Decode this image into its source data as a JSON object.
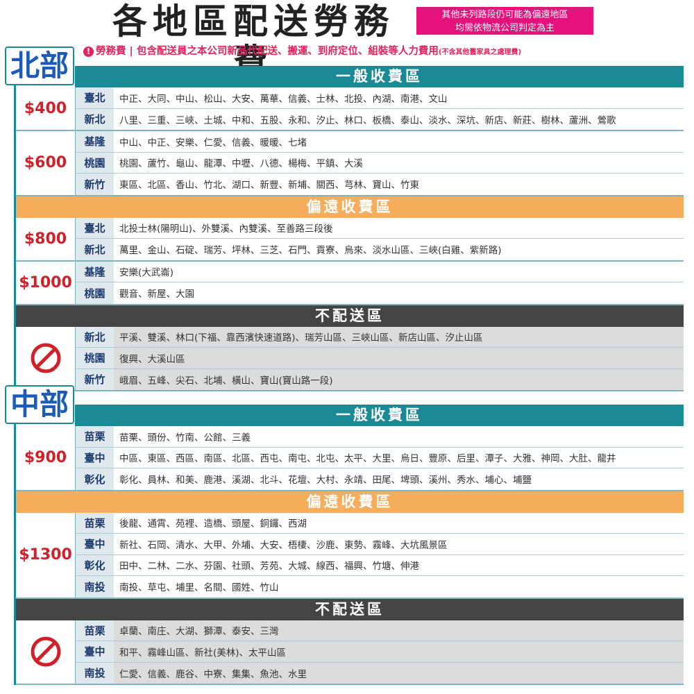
{
  "header": {
    "title": "各地區配送勞務費",
    "notice": [
      "其他未列路段仍可能為偏遠地區",
      "均需依物流公司判定為主"
    ],
    "label": "勞務費",
    "text": "包含配送員之本公司新品代配送、搬運、到府定位、組裝等人力費用",
    "note": "(不含其他舊家具之處理費)"
  },
  "regions": [
    {
      "name": "北部",
      "zones": [
        {
          "title": "一般收費區",
          "groups": [
            {
              "price": "$400",
              "rows": [
                {
                  "city": "臺北",
                  "areas": "中正、大同、中山、松山、大安、萬華、信義、士林、北投、內湖、南港、文山"
                },
                {
                  "city": "新北",
                  "areas": "八里、三重、三峽、土城、中和、五股、永和、汐止、林口、板橋、泰山、淡水、深坑、新店、新莊、樹林、蘆洲、鶯歌"
                }
              ]
            },
            {
              "price": "$600",
              "rows": [
                {
                  "city": "基隆",
                  "areas": "中山、中正、安樂、仁愛、信義、暖暖、七堵"
                },
                {
                  "city": "桃園",
                  "areas": "桃園、蘆竹、龜山、龍潭、中壢、八德、楊梅、平鎮、大溪"
                },
                {
                  "city": "新竹",
                  "areas": "東區、北區、香山、竹北、湖口、新豐、新埔、關西、芎林、寶山、竹東"
                }
              ]
            }
          ]
        },
        {
          "title": "偏遠收費區",
          "groups": [
            {
              "price": "$800",
              "rows": [
                {
                  "city": "臺北",
                  "areas": "北投士林(陽明山)、外雙溪、內雙溪、至善路三段後"
                },
                {
                  "city": "新北",
                  "areas": "萬里、金山、石碇、瑞芳、坪林、三芝、石門、貢寮、烏來、淡水山區、三峽(白雞、紫新路)"
                }
              ]
            },
            {
              "price": "$1000",
              "rows": [
                {
                  "city": "基隆",
                  "areas": "安樂(大武崙)"
                },
                {
                  "city": "桃園",
                  "areas": "觀音、新屋、大園"
                }
              ]
            }
          ]
        },
        {
          "title": "不配送區",
          "groups": [
            {
              "rows": [
                {
                  "city": "新北",
                  "areas": "平溪、雙溪、林口(下福、靠西濱快速道路)、瑞芳山區、三峽山區、新店山區、汐止山區"
                },
                {
                  "city": "桃園",
                  "areas": "復興、大溪山區"
                },
                {
                  "city": "新竹",
                  "areas": "峨眉、五峰、尖石、北埔、橫山、寶山(寶山路一段)"
                }
              ]
            }
          ]
        }
      ]
    },
    {
      "name": "中部",
      "zones": [
        {
          "title": "一般收費區",
          "groups": [
            {
              "price": "$900",
              "rows": [
                {
                  "city": "苗栗",
                  "areas": "苗栗、頭份、竹南、公館、三義"
                },
                {
                  "city": "臺中",
                  "areas": "中區、東區、西區、南區、北區、西屯、南屯、北屯、太平、大里、烏日、豐原、后里、潭子、大雅、神岡、大肚、龍井"
                },
                {
                  "city": "彰化",
                  "areas": "彰化、員林、和美、鹿港、溪湖、北斗、花壇、大村、永靖、田尾、埤頭、溪州、秀水、埔心、埔鹽"
                }
              ]
            }
          ]
        },
        {
          "title": "偏遠收費區",
          "groups": [
            {
              "price": "$1300",
              "rows": [
                {
                  "city": "苗栗",
                  "areas": "後龍、通霄、苑裡、造橋、頭屋、銅鑼、西湖"
                },
                {
                  "city": "臺中",
                  "areas": "新社、石岡、清水、大甲、外埔、大安、梧棲、沙鹿、東勢、霧峰、大坑風景區"
                },
                {
                  "city": "彰化",
                  "areas": "田中、二林、二水、芬園、社頭、芳苑、大城、線西、福興、竹塘、伸港"
                },
                {
                  "city": "南投",
                  "areas": "南投、草屯、埔里、名間、國姓、竹山"
                }
              ]
            }
          ]
        },
        {
          "title": "不配送區",
          "groups": [
            {
              "rows": [
                {
                  "city": "苗栗",
                  "areas": "卓蘭、南庄、大湖、獅潭、泰安、三灣"
                },
                {
                  "city": "臺中",
                  "areas": "和平、霧峰山區、新社(美林)、太平山區"
                },
                {
                  "city": "南投",
                  "areas": "仁愛、信義、鹿谷、中寮、集集、魚池、水里"
                }
              ]
            }
          ]
        }
      ]
    }
  ]
}
